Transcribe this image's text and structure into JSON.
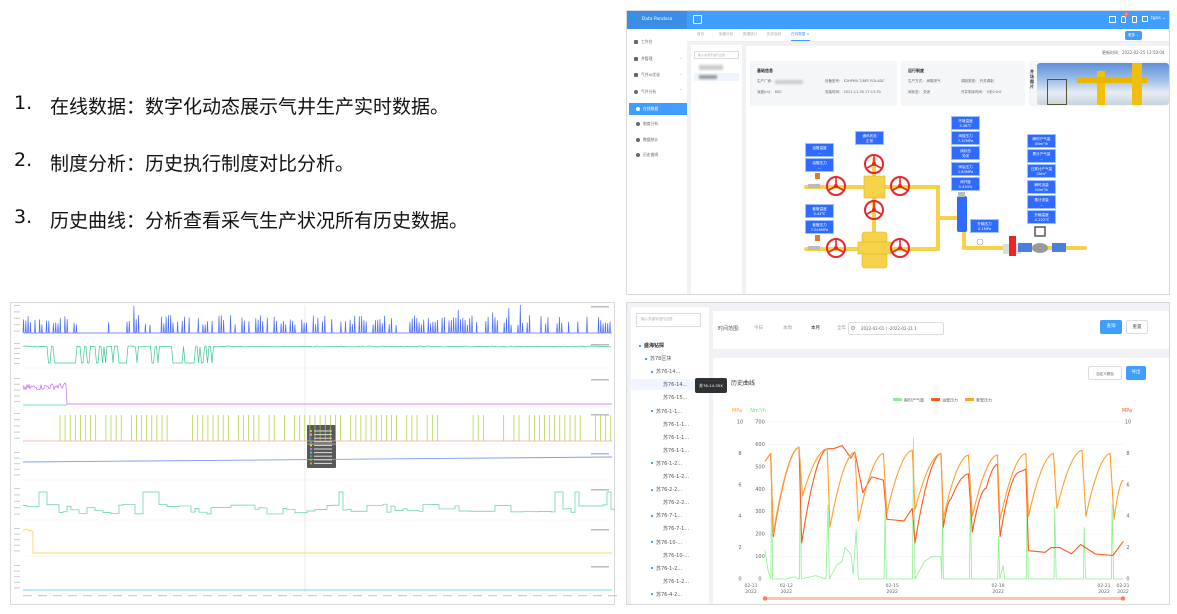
{
  "slide": {
    "items": [
      {
        "num": "1.",
        "text": "在线数据：数字化动态展示气井生产实时数据。"
      },
      {
        "num": "2.",
        "text": "制度分析：历史执行制度对比分析。"
      },
      {
        "num": "3.",
        "text": "历史曲线：分析查看采气生产状况所有历史数据。"
      }
    ]
  },
  "online": {
    "brand": "Data Pandora",
    "accent": "#409eff",
    "header_user": "tgos",
    "notification_count": "1",
    "sidebar": [
      {
        "label": "工作台",
        "icon": "monitor-icon"
      },
      {
        "label": "井管理",
        "icon": "folder-icon"
      },
      {
        "label": "气井AI优化",
        "icon": "monitor-icon"
      },
      {
        "label": "气井分析",
        "icon": "gear-icon"
      },
      {
        "label": "在线数据",
        "icon": "check-icon",
        "active": true
      },
      {
        "label": "制度分析",
        "icon": "check-icon"
      },
      {
        "label": "数据统计",
        "icon": "check-icon"
      },
      {
        "label": "历史曲线",
        "icon": "check-icon"
      }
    ],
    "tabs": [
      "首页",
      "制度分析",
      "数据统计",
      "历史曲线",
      "在线数据"
    ],
    "active_tab": "在线数据",
    "more_button": "更多",
    "filter_placeholder": "输入关键字进行过滤",
    "update_time": "更新时间：2022-02-25 13:50:04",
    "basic": {
      "title": "基础信息",
      "vendor_label": "生产厂家：",
      "model": "设备型号：  E2HPMV-7/8EF-R2LADC",
      "depth": "深度(m)：  600",
      "install": "安装时间：  2021-11-30 17:13:30"
    },
    "schedule": {
      "title": "运行制度",
      "mode": "生产方式：  间歇采气",
      "type": "调制类型：  开关调制",
      "valve": "阀状态：  关闭",
      "remain": "开井剩余时间：  0天0:0:0"
    },
    "photo_label": "井场图片",
    "tags": {
      "tubing_temp": [
        "油管温度",
        "--"
      ],
      "tubing_press": [
        "油管压力",
        "--"
      ],
      "casing_temp": [
        "套管温度",
        "5.43℃"
      ],
      "casing_press": [
        "套管压力",
        "7.046MPa"
      ],
      "comm": [
        "通讯状态",
        "正常"
      ],
      "env_temp": [
        "环境温度",
        "5.38℃"
      ],
      "pre_press": [
        "阀前压力",
        "7.37MPa"
      ],
      "valve_state": [
        "阀状态",
        "关闭"
      ],
      "post_press": [
        "阀后压力",
        "1.83MPa"
      ],
      "valve_open": [
        "阀开度",
        "0.434%"
      ],
      "out_press": [
        "外输压力",
        "0.1MPa"
      ],
      "inst_gas": [
        "瞬时产气量",
        "0Nm³/h"
      ],
      "total_gas": [
        "累计产气量",
        "--"
      ],
      "day_gas": [
        "日累计产气量",
        "0Nm³"
      ],
      "inst_flow": [
        "瞬时流量",
        "0Nm³/h"
      ],
      "total_flow": [
        "累计流量",
        "--"
      ],
      "out_temp": [
        "外输温度",
        "-0.222℃"
      ]
    }
  },
  "history": {
    "filter_placeholder": "输入关键字进行过滤",
    "tree": [
      {
        "label": "盛海钻探",
        "level": 0
      },
      {
        "label": "苏78区块",
        "level": 1
      },
      {
        "label": "苏76-14...",
        "level": 2
      },
      {
        "label": "苏76-14...",
        "level": 3,
        "selected": true
      },
      {
        "label": "苏76-15...",
        "level": 3
      },
      {
        "label": "苏76-1-1...",
        "level": 2
      },
      {
        "label": "苏76-1-1...",
        "level": 3
      },
      {
        "label": "苏76-1-1...",
        "level": 3
      },
      {
        "label": "苏76-1-1...",
        "level": 3
      },
      {
        "label": "苏76-1-2...",
        "level": 2
      },
      {
        "label": "苏76-1-2...",
        "level": 3
      },
      {
        "label": "苏76-2-2...",
        "level": 2
      },
      {
        "label": "苏76-2-2...",
        "level": 3
      },
      {
        "label": "苏76-7-1...",
        "level": 2
      },
      {
        "label": "苏76-7-1...",
        "level": 3
      },
      {
        "label": "苏76-10-...",
        "level": 2
      },
      {
        "label": "苏76-10-...",
        "level": 3
      },
      {
        "label": "苏76-1-2...",
        "level": 2
      },
      {
        "label": "苏76-1-2...",
        "level": 3
      },
      {
        "label": "苏76-4-2...",
        "level": 2
      }
    ],
    "tooltip": "苏76-14-35X",
    "range_label": "时间范围:",
    "quick": [
      "今日",
      "本周",
      "本月",
      "全年"
    ],
    "quick_active": "本月",
    "date_range": "2022-02-01 ( -2022-02-21 1",
    "query_button": "查询",
    "reset_button": "重置",
    "custom_color_button": "自定义颜色",
    "export_button": "导出",
    "chart_title": "历史曲线"
  },
  "chart_data": {
    "type": "line",
    "title": "历史曲线",
    "legend_position": "top",
    "y_left_units": [
      "MPa",
      "Nm³/h"
    ],
    "y_right_unit": "MPa",
    "y_left_mpa_ticks": [
      "0",
      "2",
      "4",
      "6",
      "8",
      "10"
    ],
    "y_left_flow_ticks": [
      "0",
      "100",
      "200",
      "300",
      "400",
      "500",
      "600",
      "700"
    ],
    "y_right_ticks": [
      "0",
      "2",
      "4",
      "6",
      "8",
      "10"
    ],
    "ylim_mpa": [
      0,
      10
    ],
    "ylim_flow": [
      0,
      700
    ],
    "x_ticks": [
      [
        "02-11",
        "2022"
      ],
      [
        "02-12",
        "2022"
      ],
      [
        "02-15",
        "2022"
      ],
      [
        "02-18",
        "2022"
      ],
      [
        "02-21",
        "2022"
      ],
      [
        "02-21",
        "2022"
      ]
    ],
    "x_tick_dates": [
      "02-11 00:00",
      "02-12 00:00",
      "02-15 00:00",
      "02-18 00:00",
      "02-21 00:00",
      "02-21 13:40"
    ],
    "grid": "horizontal dashed",
    "series": [
      {
        "name": "瞬时产气量",
        "axis": "flow",
        "color": "#90ee90",
        "points": [
          [
            "02-11 09:30",
            130
          ],
          [
            "02-11 11:30",
            40
          ],
          [
            "02-11 13:30",
            0
          ],
          [
            "02-11 14:00",
            520
          ],
          [
            "02-11 14:40",
            0
          ],
          [
            "02-12 00:00",
            0
          ],
          [
            "02-12 05:00",
            10
          ],
          [
            "02-12 09:00",
            0
          ],
          [
            "02-12 09:30",
            535
          ],
          [
            "02-12 10:10",
            0
          ],
          [
            "02-12 20:00",
            15
          ],
          [
            "02-13 03:00",
            0
          ],
          [
            "02-13 04:20",
            330
          ],
          [
            "02-13 05:20",
            0
          ],
          [
            "02-13 10:00",
            60
          ],
          [
            "02-13 14:00",
            80
          ],
          [
            "02-13 16:00",
            140
          ],
          [
            "02-13 20:00",
            110
          ],
          [
            "02-13 21:30",
            20
          ],
          [
            "02-13 23:30",
            220
          ],
          [
            "02-14 01:00",
            0
          ],
          [
            "02-14 18:30",
            0
          ],
          [
            "02-14 19:10",
            300
          ],
          [
            "02-14 20:00",
            0
          ],
          [
            "02-15 13:50",
            0
          ],
          [
            "02-15 14:30",
            630
          ],
          [
            "02-15 15:30",
            0
          ],
          [
            "02-15 22:00",
            80
          ],
          [
            "02-16 03:00",
            100
          ],
          [
            "02-16 09:00",
            100
          ],
          [
            "02-16 09:40",
            0
          ],
          [
            "02-16 10:10",
            320
          ],
          [
            "02-16 10:50",
            0
          ],
          [
            "02-17 04:30",
            0
          ],
          [
            "02-17 05:10",
            350
          ],
          [
            "02-17 06:00",
            0
          ],
          [
            "02-17 23:40",
            0
          ],
          [
            "02-18 00:20",
            190
          ],
          [
            "02-18 01:10",
            0
          ],
          [
            "02-18 03:30",
            60
          ],
          [
            "02-18 04:30",
            0
          ],
          [
            "02-18 19:10",
            0
          ],
          [
            "02-18 19:40",
            370
          ],
          [
            "02-18 20:30",
            0
          ],
          [
            "02-19 14:00",
            0
          ],
          [
            "02-19 14:30",
            320
          ],
          [
            "02-19 15:30",
            0
          ],
          [
            "02-20 10:00",
            0
          ],
          [
            "02-20 10:30",
            230
          ],
          [
            "02-20 11:30",
            0
          ],
          [
            "02-21 05:00",
            0
          ],
          [
            "02-21 05:30",
            330
          ],
          [
            "02-21 06:30",
            0
          ],
          [
            "02-21 13:10",
            0
          ]
        ]
      },
      {
        "name": "油管压力",
        "axis": "mpa",
        "color": "#ff5a1f",
        "points": [
          [
            "02-11 09:30",
            7.5
          ],
          [
            "02-11 13:20",
            8.0
          ],
          [
            "02-11 15:10",
            2.7
          ],
          [
            "02-12 08:40",
            8.4
          ],
          [
            "02-12 10:30",
            2.3
          ],
          [
            "02-13 03:50",
            8.3
          ],
          [
            "02-13 08:00",
            8.3
          ],
          [
            "02-13 14:00",
            8.5
          ],
          [
            "02-13 20:00",
            7.7
          ],
          [
            "02-13 22:40",
            8.1
          ],
          [
            "02-14 04:00",
            5.5
          ],
          [
            "02-14 10:00",
            6.5
          ],
          [
            "02-14 18:00",
            6.3
          ],
          [
            "02-14 20:20",
            3.8
          ],
          [
            "02-15 08:00",
            3.7
          ],
          [
            "02-15 13:40",
            4.5
          ],
          [
            "02-15 15:30",
            2.3
          ],
          [
            "02-16 09:10",
            8.0
          ],
          [
            "02-16 10:50",
            3.3
          ],
          [
            "02-16 16:00",
            5.1
          ],
          [
            "02-17 03:50",
            6.7
          ],
          [
            "02-17 06:30",
            3.0
          ],
          [
            "02-17 16:00",
            5.8
          ],
          [
            "02-17 23:30",
            7.3
          ],
          [
            "02-18 01:20",
            2.7
          ],
          [
            "02-18 14:00",
            6.8
          ],
          [
            "02-18 18:50",
            7.0
          ],
          [
            "02-18 20:40",
            1.8
          ],
          [
            "02-19 08:00",
            1.7
          ],
          [
            "02-19 12:00",
            2.0
          ],
          [
            "02-19 18:00",
            2.0
          ],
          [
            "02-20 02:00",
            1.6
          ],
          [
            "02-20 08:00",
            2.2
          ],
          [
            "02-20 18:00",
            1.6
          ],
          [
            "02-21 06:00",
            1.5
          ],
          [
            "02-21 13:10",
            2.4
          ]
        ]
      },
      {
        "name": "套管压力",
        "axis": "mpa",
        "color": "#ff9f2e",
        "points": [
          [
            "02-11 09:30",
            7.5
          ],
          [
            "02-11 13:20",
            8.0
          ],
          [
            "02-11 15:10",
            2.9
          ],
          [
            "02-12 08:40",
            8.4
          ],
          [
            "02-12 11:00",
            5.3
          ],
          [
            "02-13 03:50",
            8.3
          ],
          [
            "02-13 05:40",
            3.3
          ],
          [
            "02-13 22:40",
            8.1
          ],
          [
            "02-14 01:00",
            3.7
          ],
          [
            "02-14 18:00",
            8.0
          ],
          [
            "02-14 20:20",
            4.2
          ],
          [
            "02-15 13:40",
            8.2
          ],
          [
            "02-15 15:30",
            4.4
          ],
          [
            "02-16 09:10",
            8.0
          ],
          [
            "02-16 10:50",
            3.9
          ],
          [
            "02-17 03:50",
            7.9
          ],
          [
            "02-17 06:30",
            4.0
          ],
          [
            "02-17 23:30",
            7.9
          ],
          [
            "02-18 01:20",
            3.8
          ],
          [
            "02-18 18:50",
            8.0
          ],
          [
            "02-18 20:40",
            4.0
          ],
          [
            "02-19 13:40",
            8.0
          ],
          [
            "02-19 16:00",
            4.5
          ],
          [
            "02-20 09:00",
            8.2
          ],
          [
            "02-20 11:40",
            4.0
          ],
          [
            "02-21 04:10",
            8.0
          ],
          [
            "02-21 06:50",
            3.8
          ],
          [
            "02-21 13:10",
            6.3
          ]
        ]
      }
    ]
  }
}
